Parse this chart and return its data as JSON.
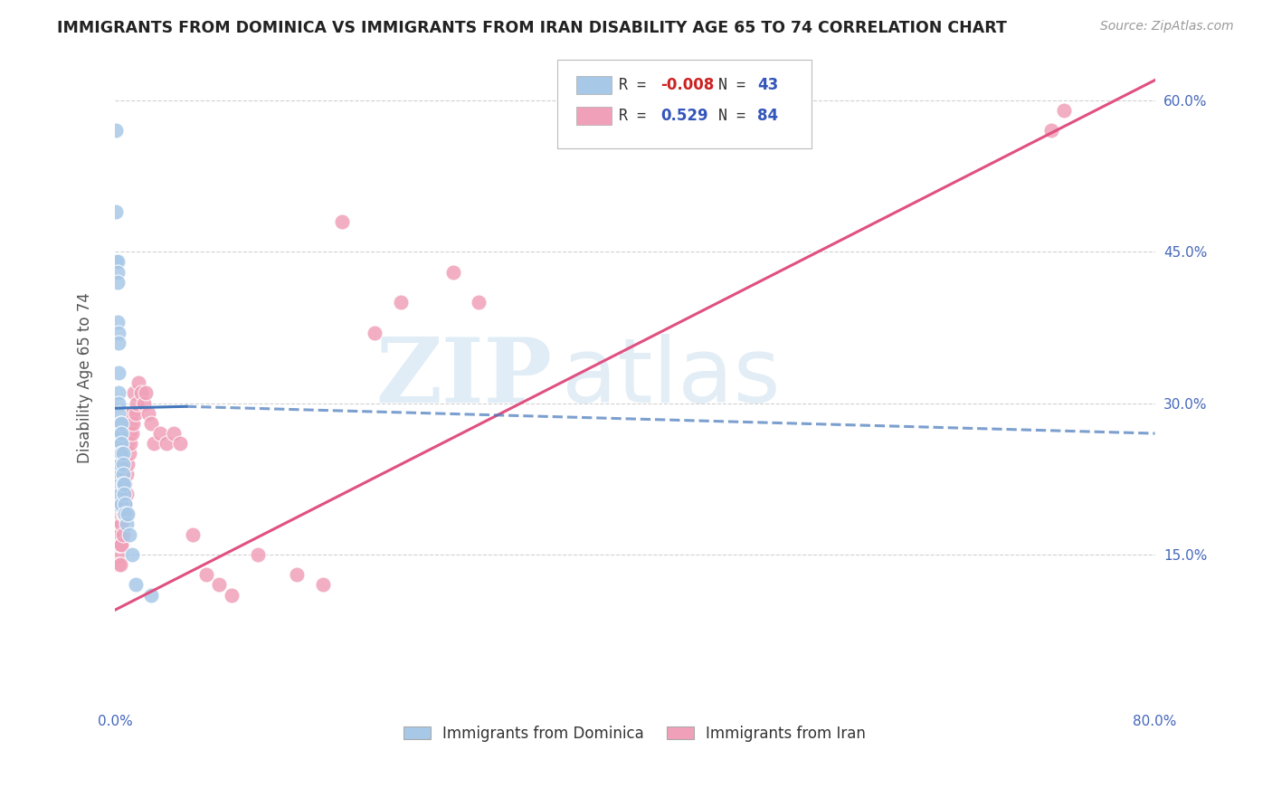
{
  "title": "IMMIGRANTS FROM DOMINICA VS IMMIGRANTS FROM IRAN DISABILITY AGE 65 TO 74 CORRELATION CHART",
  "source": "Source: ZipAtlas.com",
  "ylabel": "Disability Age 65 to 74",
  "x_min": 0.0,
  "x_max": 0.8,
  "y_min": 0.0,
  "y_max": 0.65,
  "color_dominica": "#a8c8e8",
  "color_iran": "#f0a0b8",
  "color_dominica_line": "#4477bb",
  "color_iran_line": "#e05080",
  "watermark_zip": "ZIP",
  "watermark_atlas": "atlas",
  "background_color": "#ffffff",
  "grid_color": "#cccccc",
  "dominica_x": [
    0.001,
    0.001,
    0.001,
    0.001,
    0.002,
    0.002,
    0.002,
    0.002,
    0.002,
    0.002,
    0.003,
    0.003,
    0.003,
    0.003,
    0.003,
    0.003,
    0.003,
    0.004,
    0.004,
    0.004,
    0.004,
    0.004,
    0.004,
    0.004,
    0.005,
    0.005,
    0.005,
    0.005,
    0.005,
    0.006,
    0.006,
    0.006,
    0.006,
    0.007,
    0.007,
    0.008,
    0.008,
    0.009,
    0.01,
    0.011,
    0.013,
    0.016,
    0.028
  ],
  "dominica_y": [
    0.57,
    0.49,
    0.44,
    0.2,
    0.44,
    0.43,
    0.42,
    0.38,
    0.23,
    0.2,
    0.37,
    0.36,
    0.33,
    0.31,
    0.3,
    0.29,
    0.27,
    0.28,
    0.27,
    0.26,
    0.25,
    0.24,
    0.22,
    0.21,
    0.28,
    0.27,
    0.26,
    0.25,
    0.2,
    0.25,
    0.24,
    0.23,
    0.22,
    0.22,
    0.21,
    0.2,
    0.19,
    0.18,
    0.19,
    0.17,
    0.15,
    0.12,
    0.11
  ],
  "iran_x": [
    0.001,
    0.001,
    0.001,
    0.001,
    0.001,
    0.002,
    0.002,
    0.002,
    0.002,
    0.002,
    0.002,
    0.003,
    0.003,
    0.003,
    0.003,
    0.003,
    0.003,
    0.003,
    0.003,
    0.004,
    0.004,
    0.004,
    0.004,
    0.004,
    0.004,
    0.004,
    0.005,
    0.005,
    0.005,
    0.005,
    0.005,
    0.005,
    0.006,
    0.006,
    0.006,
    0.006,
    0.006,
    0.007,
    0.007,
    0.007,
    0.007,
    0.008,
    0.008,
    0.008,
    0.009,
    0.009,
    0.009,
    0.01,
    0.01,
    0.011,
    0.011,
    0.012,
    0.012,
    0.013,
    0.013,
    0.014,
    0.015,
    0.016,
    0.017,
    0.018,
    0.02,
    0.022,
    0.024,
    0.026,
    0.028,
    0.03,
    0.035,
    0.04,
    0.045,
    0.05,
    0.06,
    0.07,
    0.08,
    0.09,
    0.11,
    0.14,
    0.16,
    0.175,
    0.2,
    0.22,
    0.26,
    0.28,
    0.72,
    0.73
  ],
  "iran_y": [
    0.22,
    0.21,
    0.19,
    0.18,
    0.17,
    0.22,
    0.2,
    0.19,
    0.17,
    0.16,
    0.15,
    0.25,
    0.22,
    0.2,
    0.19,
    0.18,
    0.17,
    0.16,
    0.14,
    0.24,
    0.23,
    0.21,
    0.19,
    0.17,
    0.16,
    0.14,
    0.25,
    0.23,
    0.22,
    0.2,
    0.18,
    0.16,
    0.25,
    0.22,
    0.21,
    0.19,
    0.17,
    0.25,
    0.23,
    0.21,
    0.19,
    0.24,
    0.22,
    0.2,
    0.23,
    0.21,
    0.19,
    0.26,
    0.24,
    0.27,
    0.25,
    0.28,
    0.26,
    0.29,
    0.27,
    0.28,
    0.31,
    0.29,
    0.3,
    0.32,
    0.31,
    0.3,
    0.31,
    0.29,
    0.28,
    0.26,
    0.27,
    0.26,
    0.27,
    0.26,
    0.17,
    0.13,
    0.12,
    0.11,
    0.15,
    0.13,
    0.12,
    0.48,
    0.37,
    0.4,
    0.43,
    0.4,
    0.57,
    0.59
  ],
  "dominica_trend_x": [
    0.0,
    0.8
  ],
  "dominica_trend_y": [
    0.295,
    0.27
  ],
  "iran_trend_x": [
    0.0,
    0.8
  ],
  "iran_trend_y": [
    0.095,
    0.62
  ]
}
